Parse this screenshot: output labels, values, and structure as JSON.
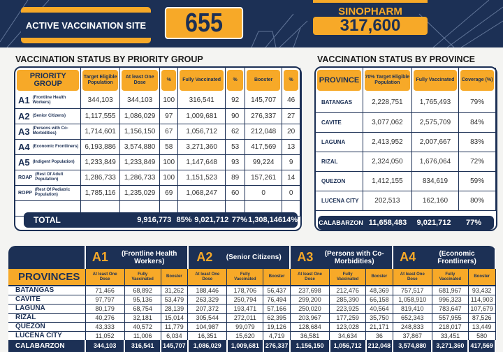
{
  "header": {
    "site_label": "ACTIVE VACCINATION SITE",
    "site_count": "655",
    "vaccine_name": "SINOPHARM",
    "vaccine_count": "317,600"
  },
  "priority": {
    "title": "VACCINATION STATUS BY PRIORITY GROUP",
    "headers": [
      "PRIORITY GROUP",
      "Target Eligible Population",
      "At least One Dose",
      "%",
      "Fully Vaccinated",
      "%",
      "Booster",
      "%"
    ],
    "rows": [
      [
        "A1",
        "(Frontline Health Workers)",
        "344,103",
        "344,103",
        "100",
        "316,541",
        "92",
        "145,707",
        "46"
      ],
      [
        "A2",
        "(Senior Citizens)",
        "1,117,555",
        "1,086,029",
        "97",
        "1,009,681",
        "90",
        "276,337",
        "27"
      ],
      [
        "A3",
        "(Persons with Co-Morbidities)",
        "1,714,601",
        "1,156,150",
        "67",
        "1,056,712",
        "62",
        "212,048",
        "20"
      ],
      [
        "A4",
        "(Economic Frontliners)",
        "6,193,886",
        "3,574,880",
        "58",
        "3,271,360",
        "53",
        "417,569",
        "13"
      ],
      [
        "A5",
        "(Indigent Population)",
        "1,233,849",
        "1,233,849",
        "100",
        "1,147,648",
        "93",
        "99,224",
        "9"
      ],
      [
        "ROAP",
        "(Rest Of Adult Population)",
        "1,286,733",
        "1,286,733",
        "100",
        "1,151,523",
        "89",
        "157,261",
        "14"
      ],
      [
        "ROPP",
        "(Rest Of Pediatric Population)",
        "1,785,116",
        "1,235,029",
        "69",
        "1,068,247",
        "60",
        "0",
        "0"
      ]
    ],
    "total": {
      "label": "TOTAL",
      "one_dose": "9,916,773",
      "one_pct": "85%",
      "fully": "9,021,712",
      "fully_pct": "77%",
      "booster": "1,308,146",
      "booster_pct": "14%"
    }
  },
  "province": {
    "title": "VACCINATION STATUS BY PROVINCE",
    "headers": [
      "PROVINCE",
      "70% Target Eligible Population",
      "Fully Vaccinated",
      "Coverage (%)"
    ],
    "rows": [
      [
        "BATANGAS",
        "2,228,751",
        "1,765,493",
        "79%"
      ],
      [
        "CAVITE",
        "3,077,062",
        "2,575,709",
        "84%"
      ],
      [
        "LAGUNA",
        "2,413,952",
        "2,007,667",
        "83%"
      ],
      [
        "RIZAL",
        "2,324,050",
        "1,676,064",
        "72%"
      ],
      [
        "QUEZON",
        "1,412,155",
        "834,619",
        "59%"
      ],
      [
        "LUCENA CITY",
        "202,513",
        "162,160",
        "80%"
      ]
    ],
    "total": [
      "CALABARZON",
      "11,658,483",
      "9,021,712",
      "77%"
    ]
  },
  "breakdown": {
    "provinces_label": "PROVINCES",
    "groups": [
      {
        "code": "A1",
        "name": "(Frontline Health Workers)"
      },
      {
        "code": "A2",
        "name": "(Senior Citizens)"
      },
      {
        "code": "A3",
        "name": "(Persons with Co-Morbidities)"
      },
      {
        "code": "A4",
        "name": "(Economic Frontliners)"
      }
    ],
    "subheaders": [
      "At least One Dose",
      "Fully Vaccinated",
      "Booster"
    ],
    "rows": [
      [
        "BATANGAS",
        "71,466",
        "68,892",
        "31,262",
        "188,446",
        "178,706",
        "56,437",
        "237,698",
        "212,476",
        "48,369",
        "757,517",
        "681,967",
        "93,432"
      ],
      [
        "CAVITE",
        "97,797",
        "95,136",
        "53,479",
        "263,329",
        "250,794",
        "76,494",
        "299,200",
        "285,390",
        "66,158",
        "1,058,910",
        "996,323",
        "114,903"
      ],
      [
        "LAGUNA",
        "80,179",
        "68,754",
        "28,139",
        "207,372",
        "193,471",
        "57,166",
        "250,020",
        "223,925",
        "40,564",
        "819,410",
        "783,647",
        "107,679"
      ],
      [
        "RIZAL",
        "40,276",
        "32,181",
        "15,014",
        "305,544",
        "272,011",
        "62,395",
        "203,967",
        "177,259",
        "35,750",
        "652,343",
        "557,955",
        "87,526"
      ],
      [
        "QUEZON",
        "43,333",
        "40,572",
        "11,779",
        "104,987",
        "99,079",
        "19,126",
        "128,684",
        "123,028",
        "21,171",
        "248,833",
        "218,017",
        "13,449"
      ],
      [
        "LUCENA CITY",
        "11,052",
        "11,006",
        "6,034",
        "16,351",
        "15,620",
        "4,719",
        "36,581",
        "34,634",
        "36",
        "37,867",
        "33,451",
        "580"
      ]
    ],
    "total": [
      "CALABARZON",
      "344,103",
      "316,541",
      "145,707",
      "1,086,029",
      "1,009,681",
      "276,337",
      "1,156,150",
      "1,056,712",
      "212,048",
      "3,574,880",
      "3,271,360",
      "417,569"
    ]
  }
}
